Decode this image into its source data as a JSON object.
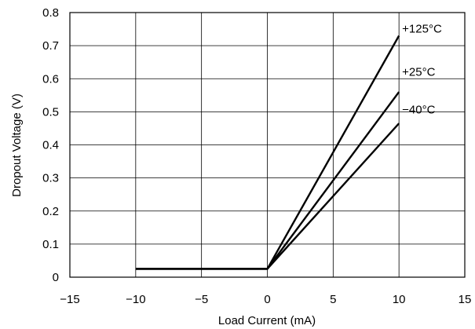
{
  "chart_data": {
    "type": "line",
    "xlabel": "Load Current (mA)",
    "ylabel": "Dropout Voltage (V)",
    "xlim": [
      -15,
      15
    ],
    "ylim": [
      0,
      0.8
    ],
    "xticks": [
      -15,
      -10,
      -5,
      0,
      5,
      10,
      15
    ],
    "xtick_labels": [
      "−15",
      "−10",
      "−5",
      "0",
      "5",
      "10",
      "15"
    ],
    "yticks": [
      0,
      0.1,
      0.2,
      0.3,
      0.4,
      0.5,
      0.6,
      0.7,
      0.8
    ],
    "ytick_labels": [
      "0",
      "0.1",
      "0.2",
      "0.3",
      "0.4",
      "0.5",
      "0.6",
      "0.7",
      "0.8"
    ],
    "grid": true,
    "series": [
      {
        "name": "+125°C",
        "x": [
          -10,
          0,
          10
        ],
        "y": [
          0.025,
          0.025,
          0.73
        ]
      },
      {
        "name": "+25°C",
        "x": [
          -10,
          0,
          10
        ],
        "y": [
          0.025,
          0.025,
          0.56
        ]
      },
      {
        "name": "−40°C",
        "x": [
          -10,
          0,
          10
        ],
        "y": [
          0.025,
          0.025,
          0.465
        ]
      }
    ]
  }
}
